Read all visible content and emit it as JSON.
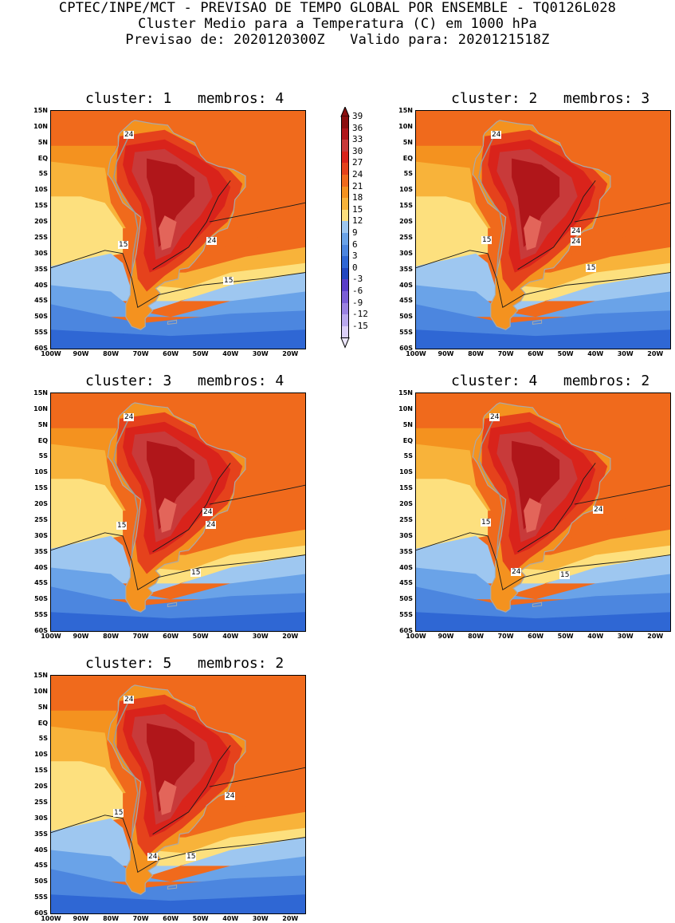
{
  "header": {
    "line1": "CPTEC/INPE/MCT - PREVISAO DE TEMPO GLOBAL POR ENSEMBLE - TQ0126L028",
    "line2": "Cluster Medio para a Temperatura (C) em 1000 hPa",
    "line3": "Previsao de: 2020120300Z   Valido para: 2020121518Z"
  },
  "panels": [
    {
      "title": "cluster: 1   membros: 4",
      "contour_labels": [
        "24",
        "24",
        "15",
        "15"
      ]
    },
    {
      "title": "cluster: 2   membros: 3",
      "contour_labels": [
        "24",
        "24",
        "24",
        "15",
        "15"
      ]
    },
    {
      "title": "cluster: 3   membros: 4",
      "contour_labels": [
        "24",
        "24",
        "24",
        "15",
        "15"
      ]
    },
    {
      "title": "cluster: 4   membros: 2",
      "contour_labels": [
        "24",
        "24",
        "24",
        "15",
        "15"
      ]
    },
    {
      "title": "cluster: 5   membros: 2",
      "contour_labels": [
        "24",
        "24",
        "24",
        "15",
        "15"
      ]
    }
  ],
  "axes": {
    "lat_labels": [
      "15N",
      "10N",
      "5N",
      "EQ",
      "5S",
      "10S",
      "15S",
      "20S",
      "25S",
      "30S",
      "35S",
      "40S",
      "45S",
      "50S",
      "55S",
      "60S"
    ],
    "lon_labels": [
      "100W",
      "90W",
      "80W",
      "70W",
      "60W",
      "50W",
      "40W",
      "30W",
      "20W"
    ]
  },
  "colorbar": {
    "labels": [
      "39",
      "36",
      "33",
      "30",
      "27",
      "24",
      "21",
      "18",
      "15",
      "12",
      "9",
      "6",
      "3",
      "0",
      "-3",
      "-6",
      "-9",
      "-12",
      "-15"
    ],
    "colors": [
      "#8b0f0f",
      "#b0161a",
      "#c83a3a",
      "#d9231b",
      "#e5421c",
      "#f06a1c",
      "#f4921f",
      "#f8b33a",
      "#fde07e",
      "#9ec7f0",
      "#6aa3e8",
      "#4c86df",
      "#2f67d4",
      "#2147c0",
      "#5a3ec8",
      "#7a5ed6",
      "#9a82e2",
      "#b9a8ee",
      "#dcd0f8"
    ]
  }
}
